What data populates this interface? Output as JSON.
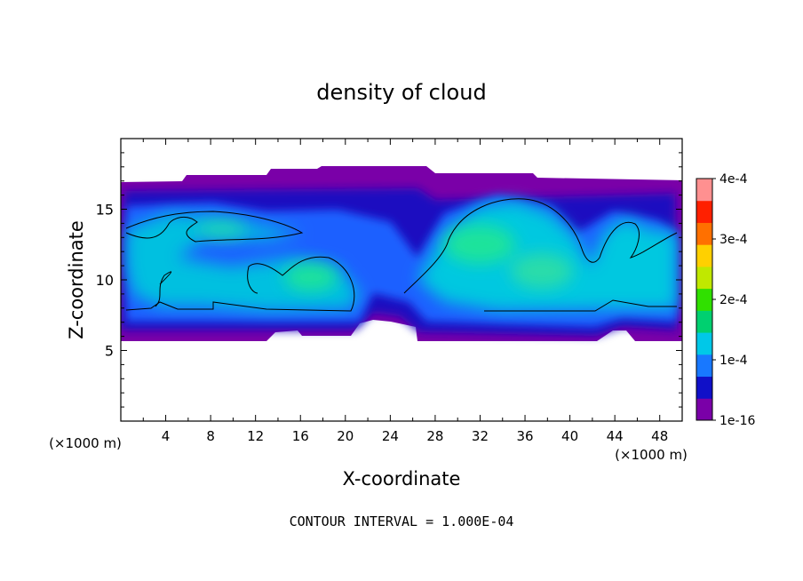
{
  "chart_data": {
    "type": "heatmap",
    "title": "density of cloud",
    "xlabel": "X-coordinate",
    "ylabel": "Z-coordinate",
    "x_unit_left": "(×1000 m)",
    "x_unit_right": "(×1000 m)",
    "footer": "CONTOUR INTERVAL = 1.000E-04",
    "xlim": [
      0,
      50
    ],
    "ylim": [
      0,
      20
    ],
    "x_ticks": [
      4,
      8,
      12,
      16,
      20,
      24,
      28,
      32,
      36,
      40,
      44,
      48
    ],
    "x_tick_labels": [
      "4",
      "8",
      "12",
      "16",
      "20",
      "24",
      "28",
      "32",
      "36",
      "40",
      "44",
      "48"
    ],
    "y_ticks": [
      5,
      10,
      15
    ],
    "y_tick_labels": [
      "5",
      "10",
      "15"
    ],
    "colorbar": {
      "range": [
        0,
        0.0004
      ],
      "tick_values": [
        0,
        0.0001,
        0.0002,
        0.0003,
        0.0004
      ],
      "tick_labels": [
        "1e-16",
        "1e-4",
        "2e-4",
        "3e-4",
        "4e-4"
      ],
      "colors": [
        "#7a00a8",
        "#1010c8",
        "#1878ff",
        "#00c8e8",
        "#00d070",
        "#30e000",
        "#c0e800",
        "#ffd000",
        "#ff7000",
        "#ff2000",
        "#ff9090"
      ]
    },
    "field": {
      "cloud_base_z": 6,
      "cloud_top_z": 17,
      "level_1e-4_top_z": 16,
      "level_1e-4_bottom_z": 8,
      "max_value_approx": 0.00016
    }
  }
}
